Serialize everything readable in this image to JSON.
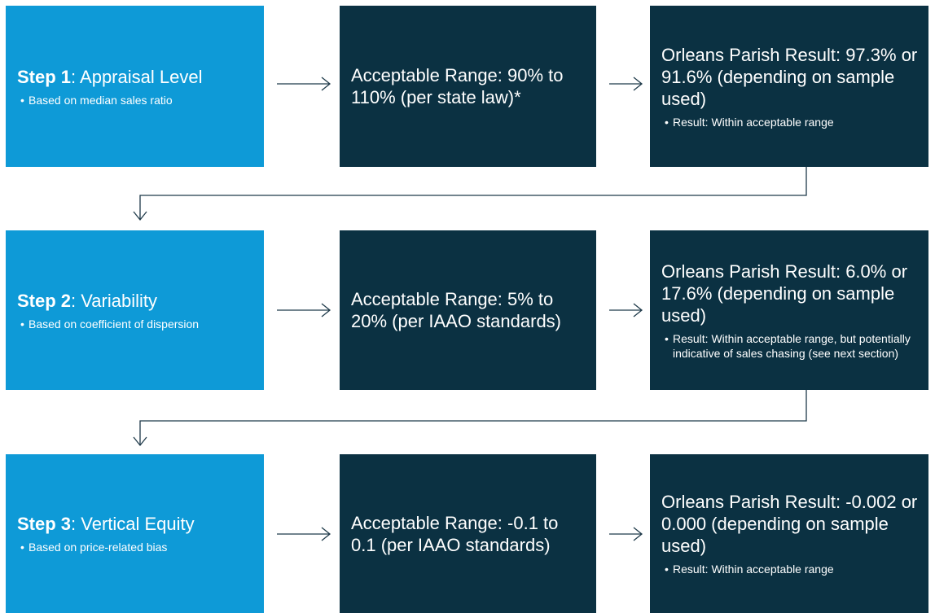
{
  "rows": [
    {
      "step": "Step 1",
      "title": ": Appraisal Level",
      "bullet": "Based on median sales ratio",
      "range": "Acceptable Range: 90% to 110% (per state law)*",
      "result": "Orleans Parish Result: 97.3% or 91.6% (depending on sample used)",
      "result_bullet": "Result: Within acceptable range"
    },
    {
      "step": "Step 2",
      "title": ": Variability",
      "bullet": "Based on coefficient of dispersion",
      "range": "Acceptable Range: 5% to 20% (per IAAO standards)",
      "result": "Orleans Parish Result: 6.0% or 17.6% (depending on sample used)",
      "result_bullet": "Result: Within acceptable range, but potentially indicative of sales chasing (see next section)"
    },
    {
      "step": "Step 3",
      "title": ": Vertical Equity",
      "bullet": "Based on price-related bias",
      "range": "Acceptable Range: -0.1 to 0.1 (per IAAO standards)",
      "result": "Orleans Parish Result: -0.002 or 0.000 (depending on sample used)",
      "result_bullet": "Result: Within acceptable range"
    }
  ]
}
